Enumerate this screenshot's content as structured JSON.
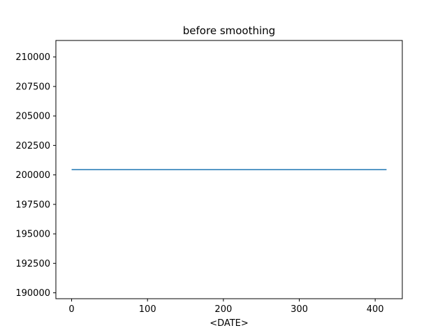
{
  "chart_data": {
    "type": "line",
    "title": "before smoothing",
    "xlabel": "<DATE>",
    "ylabel": "",
    "xlim": [
      -20.75,
      435.75
    ],
    "ylim": [
      189500,
      211400
    ],
    "xticks": [
      0,
      100,
      200,
      300,
      400
    ],
    "yticks": [
      190000,
      192500,
      195000,
      197500,
      200000,
      202500,
      205000,
      207500,
      210000
    ],
    "grid": false,
    "series": [
      {
        "color": "#1f77b4",
        "x": [
          0,
          415
        ],
        "y": [
          200450,
          200450
        ]
      }
    ]
  }
}
